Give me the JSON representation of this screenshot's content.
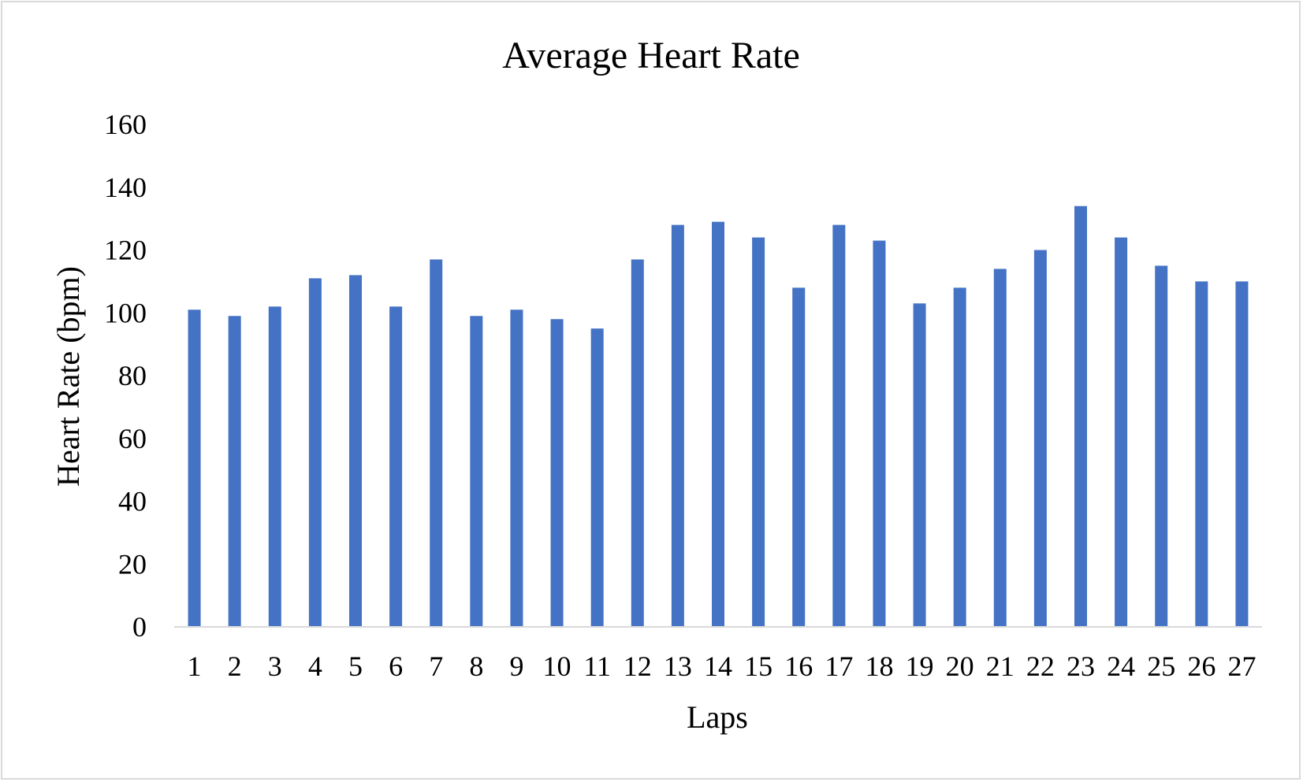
{
  "chart_data": {
    "type": "bar",
    "title": "Average Heart Rate",
    "xlabel": "Laps",
    "ylabel": "Heart Rate (bpm)",
    "ylim": [
      0,
      160
    ],
    "yticks": [
      "0",
      "20",
      "40",
      "60",
      "80",
      "100",
      "120",
      "140",
      "160"
    ],
    "grid": false,
    "legend": "none",
    "categories": [
      "1",
      "2",
      "3",
      "4",
      "5",
      "6",
      "7",
      "8",
      "9",
      "10",
      "11",
      "12",
      "13",
      "14",
      "15",
      "16",
      "17",
      "18",
      "19",
      "20",
      "21",
      "22",
      "23",
      "24",
      "25",
      "26",
      "27"
    ],
    "series": [
      {
        "values": [
          101,
          99,
          102,
          111,
          112,
          102,
          117,
          99,
          101,
          98,
          95,
          117,
          128,
          129,
          124,
          108,
          128,
          123,
          103,
          108,
          114,
          120,
          134,
          124,
          115,
          110,
          110
        ],
        "color": "#4472c4"
      }
    ],
    "axis_color": "#d9d9d9"
  }
}
